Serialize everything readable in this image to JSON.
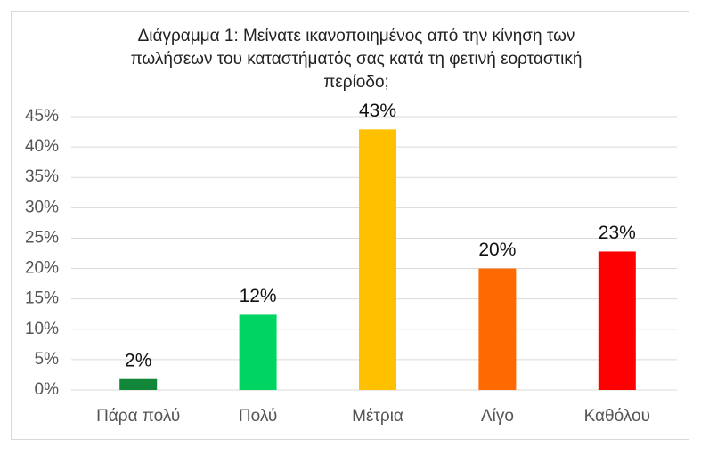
{
  "chart_data": {
    "type": "bar",
    "title": "Διάγραμμα 1: Μείνατε ικανοποιημένος από την κίνηση των πωλήσεων του καταστήματός σας κατά τη φετινή εορταστική περίοδο;",
    "categories": [
      "Πάρα πολύ",
      "Πολύ",
      "Μέτρια",
      "Λίγο",
      "Καθόλου"
    ],
    "values": [
      1.8,
      12.4,
      42.9,
      20,
      22.8
    ],
    "value_labels": [
      "2%",
      "12%",
      "43%",
      "20%",
      "23%"
    ],
    "colors": [
      "#12873a",
      "#00d462",
      "#ffc000",
      "#ff6a00",
      "#ff0000"
    ],
    "ylim": [
      0,
      45
    ],
    "yticks": [
      {
        "value": 0,
        "label": "0%"
      },
      {
        "value": 5,
        "label": "5%"
      },
      {
        "value": 10,
        "label": "10%"
      },
      {
        "value": 15,
        "label": "15%"
      },
      {
        "value": 20,
        "label": "20%"
      },
      {
        "value": 25,
        "label": "25%"
      },
      {
        "value": 30,
        "label": "30%"
      },
      {
        "value": 35,
        "label": "35%"
      },
      {
        "value": 40,
        "label": "40%"
      },
      {
        "value": 45,
        "label": "45%"
      }
    ],
    "grid": true
  }
}
